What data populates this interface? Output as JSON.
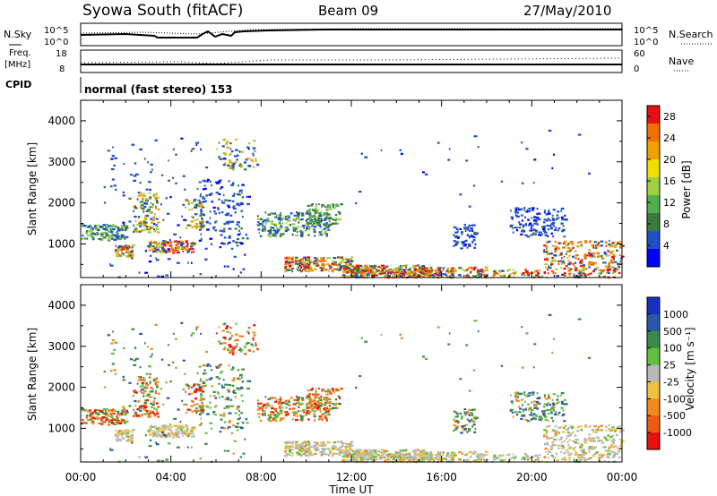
{
  "header": {
    "station": "Syowa South (fitACF)",
    "beam": "Beam 09",
    "date": "27/May/2010"
  },
  "noise_panel": {
    "left_label": "N.Sky",
    "left_ticks": [
      "10^5",
      "10^0"
    ],
    "right_label": "N.Search",
    "right_ticks": [
      "10^5",
      "10^0"
    ]
  },
  "freq_panel": {
    "left_label_1": "Freq.",
    "left_label_2": "[MHz]",
    "left_ticks": [
      "18",
      "8"
    ],
    "right_label": "Nave",
    "right_ticks": [
      "60",
      "0"
    ]
  },
  "cpid": {
    "label": "CPID",
    "value": "normal (fast stereo) 153"
  },
  "chart_data": [
    {
      "type": "heatmap",
      "quantity": "Power",
      "ylabel": "Slant Range [km]",
      "xlabel": "Time UT",
      "yticks": [
        "1000",
        "2000",
        "3000",
        "4000"
      ],
      "xticks": [
        "00:00",
        "04:00",
        "08:00",
        "12:00",
        "16:00",
        "20:00",
        "00:00"
      ],
      "xlim_hours": [
        0,
        24
      ],
      "ylim_km": [
        180,
        4500
      ],
      "colorbar": {
        "label": "Power [dB]",
        "ticks": [
          "4",
          "8",
          "12",
          "16",
          "20",
          "24",
          "28"
        ],
        "colors": [
          "#0000ff",
          "#2050c8",
          "#3a7a3a",
          "#50b050",
          "#a0d040",
          "#f0e000",
          "#f0a000",
          "#f07000",
          "#e81010"
        ],
        "range": [
          0,
          30
        ]
      }
    },
    {
      "type": "heatmap",
      "quantity": "Velocity",
      "ylabel": "Slant Range [km]",
      "xlabel": "Time UT",
      "yticks": [
        "1000",
        "2000",
        "3000",
        "4000"
      ],
      "xticks": [
        "00:00",
        "04:00",
        "08:00",
        "12:00",
        "16:00",
        "20:00",
        "00:00"
      ],
      "xlim_hours": [
        0,
        24
      ],
      "ylim_km": [
        180,
        4500
      ],
      "colorbar": {
        "label": "Velocity [m s⁻¹]",
        "ticks": [
          "1000",
          "500",
          "100",
          "25",
          "-25",
          "-100",
          "-500",
          "-1000"
        ],
        "colors": [
          "#1830c0",
          "#2858a8",
          "#3c8a4a",
          "#60c040",
          "#b8b8b8",
          "#f0c040",
          "#f08a20",
          "#f05a10",
          "#e81010"
        ]
      }
    }
  ]
}
